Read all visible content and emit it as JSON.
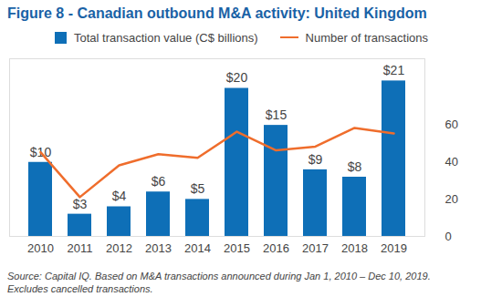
{
  "chart_data": {
    "type": "bar",
    "title": "Figure 8 - Canadian outbound M&A activity: United Kingdom",
    "caption": "Source: Capital IQ. Based on M&A transactions announced during Jan 1, 2010 – Dec 10, 2019. Excludes cancelled transactions.",
    "categories": [
      "2010",
      "2011",
      "2012",
      "2013",
      "2014",
      "2015",
      "2016",
      "2017",
      "2018",
      "2019"
    ],
    "series": [
      {
        "name": "Total transaction value (C$ billions)",
        "type": "bar",
        "color": "#0e6fb7",
        "values": [
          10,
          3,
          4,
          6,
          5,
          20,
          15,
          9,
          8,
          21
        ],
        "value_labels": [
          "$10",
          "$3",
          "$4",
          "$6",
          "$5",
          "$20",
          "$15",
          "$9",
          "$8",
          "$21"
        ]
      },
      {
        "name": "Number of transactions",
        "type": "line",
        "axis": "y2",
        "color": "#ef6d2c",
        "values": [
          45,
          21,
          38,
          44,
          42,
          56,
          46,
          48,
          58,
          55
        ]
      }
    ],
    "ylim": [
      0,
      24
    ],
    "yticks": [],
    "y2lim": [
      0,
      95
    ],
    "y2ticks": [
      0,
      20,
      40,
      60
    ],
    "data_labels": true,
    "grid": false,
    "legend": "top"
  }
}
